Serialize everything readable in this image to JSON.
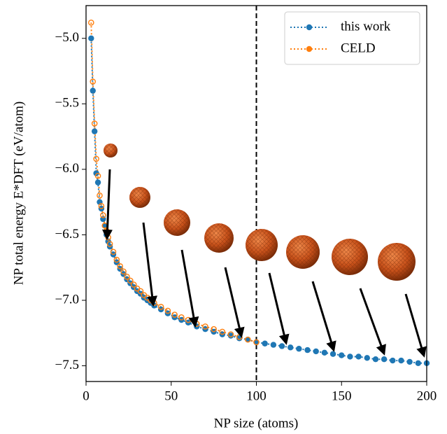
{
  "chart_data": {
    "type": "line",
    "xlabel": "NP size (atoms)",
    "ylabel": "NP total energy E*DFT (eV/atom)",
    "x": [
      3,
      4,
      5,
      6,
      7,
      8,
      9,
      10,
      11,
      12,
      13,
      14,
      16,
      18,
      20,
      22,
      24,
      26,
      28,
      30,
      32,
      34,
      36,
      38,
      40,
      44,
      48,
      52,
      56,
      60,
      65,
      70,
      75,
      80,
      85,
      90,
      95,
      100,
      105,
      110,
      115,
      120,
      125,
      130,
      135,
      140,
      145,
      150,
      155,
      160,
      165,
      170,
      175,
      180,
      185,
      190,
      195,
      200
    ],
    "series": [
      {
        "name": "this work",
        "color": "#1f77b4",
        "marker": "filled",
        "values": [
          -5.0,
          -5.4,
          -5.71,
          -6.03,
          -6.1,
          -6.25,
          -6.3,
          -6.38,
          -6.43,
          -6.5,
          -6.55,
          -6.59,
          -6.65,
          -6.71,
          -6.76,
          -6.8,
          -6.84,
          -6.87,
          -6.9,
          -6.93,
          -6.95,
          -6.98,
          -7.0,
          -7.02,
          -7.04,
          -7.07,
          -7.1,
          -7.13,
          -7.15,
          -7.17,
          -7.2,
          -7.22,
          -7.24,
          -7.26,
          -7.27,
          -7.29,
          -7.3,
          -7.32,
          -7.33,
          -7.34,
          -7.35,
          -7.36,
          -7.37,
          -7.38,
          -7.39,
          -7.4,
          -7.41,
          -7.42,
          -7.43,
          -7.43,
          -7.44,
          -7.45,
          -7.45,
          -7.46,
          -7.46,
          -7.47,
          -7.48,
          -7.48
        ]
      },
      {
        "name": "CELD",
        "color": "#ff7f0e",
        "marker": "open",
        "values": [
          -4.88,
          -5.33,
          -5.65,
          -5.92,
          -6.05,
          -6.2,
          -6.28,
          -6.35,
          -6.43,
          -6.47,
          -6.52,
          -6.57,
          -6.63,
          -6.69,
          -6.74,
          -6.78,
          -6.82,
          -6.85,
          -6.88,
          -6.91,
          -6.93,
          -6.96,
          -6.98,
          -7.0,
          -7.02,
          -7.05,
          -7.08,
          -7.11,
          -7.13,
          -7.15,
          -7.18,
          -7.2,
          -7.22,
          -7.24,
          -7.26,
          -7.28,
          -7.3,
          -7.32,
          null,
          null,
          null,
          null,
          null,
          null,
          null,
          null,
          null,
          null,
          null,
          null,
          null,
          null,
          null,
          null,
          null,
          null,
          null,
          null
        ]
      }
    ],
    "xlim": [
      0,
      200
    ],
    "xticks": [
      0,
      50,
      100,
      150,
      200
    ],
    "ylim": [
      -7.62,
      -4.75
    ],
    "yticks": [
      {
        "value": -5.0,
        "label": "−5.0"
      },
      {
        "value": -5.5,
        "label": "−5.5"
      },
      {
        "value": -6.0,
        "label": "−6.0"
      },
      {
        "value": -6.5,
        "label": "−6.5"
      },
      {
        "value": -7.0,
        "label": "−7.0"
      },
      {
        "value": -7.5,
        "label": "−7.5"
      }
    ],
    "vline_x": 100,
    "legend": "upper right",
    "grid": false
  }
}
